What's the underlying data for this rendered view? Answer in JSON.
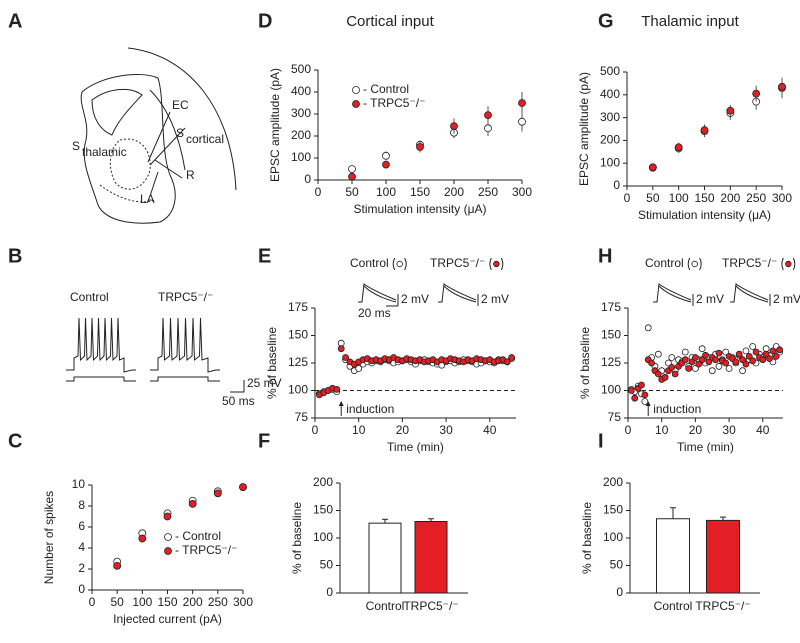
{
  "panel_a": {
    "panel": "A",
    "labels": [
      "EC",
      "R",
      "LA"
    ],
    "subscripted": [
      [
        "S",
        "cortical"
      ],
      [
        "S",
        "thalamic"
      ]
    ]
  },
  "panel_b": {
    "panel": "B",
    "labels": [
      "Control",
      "TRPC5⁻/⁻"
    ],
    "scale": [
      "25 mV",
      "50 ms"
    ]
  },
  "chart_data": [
    {
      "type": "scatter",
      "panel": "C",
      "x_label": "Injected current (pA)",
      "y_label": "Number of spikes",
      "x": [
        50,
        100,
        150,
        200,
        250,
        300
      ],
      "xlim": [
        0,
        300
      ],
      "xticks": [
        0,
        50,
        100,
        150,
        200,
        250,
        300
      ],
      "ylim": [
        0,
        10
      ],
      "yticks": [
        0,
        2,
        4,
        6,
        8,
        10
      ],
      "legend": true,
      "series": [
        {
          "name": "- Control",
          "color": "#ffffff",
          "values": [
            2.7,
            5.4,
            7.3,
            8.5,
            9.4,
            9.8
          ]
        },
        {
          "name": "- TRPC5⁻/⁻",
          "color": "#e31e24",
          "values": [
            2.3,
            4.9,
            7.0,
            8.2,
            9.2,
            9.8
          ]
        }
      ]
    },
    {
      "type": "scatter",
      "panel": "D",
      "title": "Cortical input",
      "x_label": "Stimulation intensity (μA)",
      "y_label": "EPSC amplitude (pA)",
      "x": [
        50,
        100,
        150,
        200,
        250,
        300
      ],
      "xlim": [
        0,
        300
      ],
      "xticks": [
        0,
        50,
        100,
        150,
        200,
        250,
        300
      ],
      "ylim": [
        0,
        500
      ],
      "yticks": [
        0,
        100,
        200,
        300,
        400,
        500
      ],
      "legend": true,
      "series": [
        {
          "name": "- Control",
          "color": "#ffffff",
          "values": [
            50,
            110,
            160,
            215,
            235,
            265
          ],
          "errors": [
            15,
            20,
            20,
            25,
            35,
            45
          ]
        },
        {
          "name": "- TRPC5⁻/⁻",
          "color": "#e31e24",
          "values": [
            15,
            70,
            150,
            245,
            295,
            350
          ],
          "errors": [
            10,
            15,
            25,
            35,
            40,
            50
          ]
        }
      ]
    },
    {
      "type": "scatter",
      "panel": "E",
      "x_label": "Time (min)",
      "y_label": "% of baseline",
      "x": [
        1,
        2,
        3,
        4,
        5,
        6,
        7,
        8,
        9,
        10,
        11,
        12,
        13,
        14,
        15,
        16,
        17,
        18,
        19,
        20,
        21,
        22,
        23,
        24,
        25,
        26,
        27,
        28,
        29,
        30,
        31,
        32,
        33,
        34,
        35,
        36,
        37,
        38,
        39,
        40,
        41,
        42,
        43,
        44,
        45
      ],
      "xlim": [
        0,
        46
      ],
      "xticks": [
        0,
        10,
        20,
        30,
        40
      ],
      "ylim": [
        75,
        175
      ],
      "yticks": [
        75,
        100,
        125,
        150,
        175
      ],
      "legend": false,
      "reference_line": 100,
      "annotation": {
        "text": "induction",
        "x": 6
      },
      "insets": [
        {
          "label": "Control",
          "scale": [
            "2 mV",
            "20 ms"
          ]
        },
        {
          "label": "TRPC5⁻/⁻",
          "scale": [
            "2 mV"
          ]
        }
      ],
      "series": [
        {
          "name": "Control",
          "color": "#ffffff",
          "values": [
            97,
            99,
            100,
            101,
            99,
            143,
            128,
            122,
            118,
            120,
            124,
            126,
            125,
            127,
            126,
            128,
            127,
            125,
            126,
            127,
            128,
            126,
            124,
            127,
            128,
            126,
            125,
            124,
            123,
            126,
            127,
            125,
            126,
            128,
            127,
            126,
            124,
            125,
            127,
            126,
            125,
            128,
            127,
            126,
            129
          ]
        },
        {
          "name": "TRPC5⁻/⁻",
          "color": "#e31e24",
          "values": [
            96,
            98,
            100,
            102,
            101,
            138,
            130,
            126,
            124,
            126,
            128,
            129,
            127,
            128,
            127,
            129,
            128,
            130,
            128,
            127,
            129,
            128,
            127,
            128,
            126,
            127,
            128,
            126,
            128,
            127,
            129,
            128,
            127,
            126,
            128,
            127,
            129,
            128,
            127,
            128,
            126,
            127,
            128,
            126,
            130
          ]
        }
      ]
    },
    {
      "type": "bar",
      "panel": "F",
      "y_label": "% of baseline",
      "categories": [
        "Control",
        "TRPC5⁻/⁻"
      ],
      "values": [
        127,
        130
      ],
      "errors": [
        7,
        5
      ],
      "colors": [
        "#ffffff",
        "#e31e24"
      ],
      "ylim": [
        0,
        200
      ],
      "yticks": [
        0,
        50,
        100,
        150,
        200
      ]
    },
    {
      "type": "scatter",
      "panel": "G",
      "title": "Thalamic input",
      "x_label": "Stimulation intensity (μA)",
      "y_label": "EPSC amplitude (pA)",
      "x": [
        50,
        100,
        150,
        200,
        250,
        300
      ],
      "xlim": [
        0,
        300
      ],
      "xticks": [
        0,
        50,
        100,
        150,
        200,
        250,
        300
      ],
      "ylim": [
        0,
        500
      ],
      "yticks": [
        0,
        100,
        200,
        300,
        400,
        500
      ],
      "legend": false,
      "series": [
        {
          "name": "Control",
          "color": "#ffffff",
          "values": [
            80,
            165,
            240,
            320,
            370,
            430
          ],
          "errors": [
            10,
            20,
            25,
            30,
            35,
            45
          ]
        },
        {
          "name": "TRPC5⁻/⁻",
          "color": "#e31e24",
          "values": [
            82,
            170,
            245,
            330,
            405,
            435
          ],
          "errors": [
            10,
            20,
            25,
            25,
            35,
            40
          ]
        }
      ]
    },
    {
      "type": "scatter",
      "panel": "H",
      "x_label": "Time (min)",
      "y_label": "% of baseline",
      "x": [
        1,
        2,
        3,
        4,
        5,
        6,
        7,
        8,
        9,
        10,
        11,
        12,
        13,
        14,
        15,
        16,
        17,
        18,
        19,
        20,
        21,
        22,
        23,
        24,
        25,
        26,
        27,
        28,
        29,
        30,
        31,
        32,
        33,
        34,
        35,
        36,
        37,
        38,
        39,
        40,
        41,
        42,
        43,
        44,
        45
      ],
      "xlim": [
        0,
        46
      ],
      "xticks": [
        0,
        10,
        20,
        30,
        40
      ],
      "ylim": [
        75,
        175
      ],
      "yticks": [
        75,
        100,
        125,
        150,
        175
      ],
      "legend": false,
      "reference_line": 100,
      "annotation": {
        "text": "induction",
        "x": 6
      },
      "insets": [
        {
          "label": "Control",
          "scale": [
            "2 mV"
          ]
        },
        {
          "label": "TRPC5⁻/⁻",
          "scale": [
            "2 mV"
          ]
        }
      ],
      "series": [
        {
          "name": "Control",
          "color": "#ffffff",
          "values": [
            101,
            99,
            104,
            97,
            90,
            157,
            130,
            122,
            133,
            118,
            112,
            125,
            130,
            118,
            128,
            126,
            135,
            122,
            130,
            120,
            128,
            138,
            125,
            130,
            118,
            133,
            122,
            128,
            135,
            120,
            130,
            125,
            132,
            118,
            136,
            128,
            140,
            125,
            133,
            130,
            138,
            132,
            126,
            140,
            135
          ]
        },
        {
          "name": "TRPC5⁻/⁻",
          "color": "#e31e24",
          "values": [
            100,
            93,
            102,
            105,
            96,
            128,
            125,
            118,
            115,
            110,
            112,
            118,
            121,
            115,
            122,
            125,
            128,
            120,
            126,
            130,
            124,
            128,
            132,
            126,
            130,
            128,
            134,
            127,
            125,
            131,
            129,
            126,
            133,
            128,
            124,
            131,
            127,
            135,
            130,
            128,
            133,
            129,
            136,
            131,
            137
          ]
        }
      ]
    },
    {
      "type": "bar",
      "panel": "I",
      "y_label": "% of baseline",
      "categories": [
        "Control",
        "TRPC5⁻/⁻"
      ],
      "values": [
        135,
        132
      ],
      "errors": [
        20,
        6
      ],
      "colors": [
        "#ffffff",
        "#e31e24"
      ],
      "ylim": [
        0,
        200
      ],
      "yticks": [
        0,
        50,
        100,
        150,
        200
      ]
    }
  ]
}
